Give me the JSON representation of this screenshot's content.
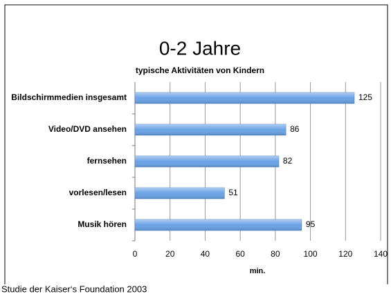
{
  "chart_data": {
    "type": "barh",
    "title": "0-2 Jahre",
    "subtitle": "typische Aktivitäten von Kindern",
    "categories": [
      "Bildschirmmedien insgesamt",
      "Video/DVD ansehen",
      "fernsehen",
      "vorlesen/lesen",
      "Musik hören"
    ],
    "values": [
      125,
      86,
      82,
      51,
      95
    ],
    "color": "#6aa2e6",
    "xlim": [
      0,
      140
    ],
    "xticks": [
      0,
      20,
      40,
      60,
      80,
      100,
      120,
      140
    ],
    "grid": true,
    "xlabel": "min.",
    "caption": "Studie der Kaiser‘s Foundation 2003"
  }
}
